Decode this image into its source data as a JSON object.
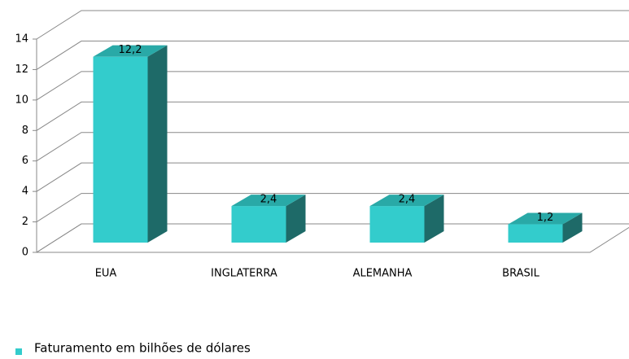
{
  "chart_data": {
    "type": "bar3d",
    "categories": [
      "EUA",
      "INGLATERRA",
      "ALEMANHA",
      "BRASIL"
    ],
    "series": [
      {
        "name": "Faturamento em bilhões de dólares",
        "color": "#33cccc",
        "values": [
          12.2,
          2.4,
          2.4,
          1.2
        ],
        "value_labels": [
          "12,2",
          "2,4",
          "2,4",
          "1,2"
        ]
      }
    ],
    "ylim": [
      0,
      14
    ],
    "yticks": [
      0,
      2,
      4,
      6,
      8,
      10,
      12,
      14
    ],
    "grid": true,
    "legend": "bottom-left"
  }
}
